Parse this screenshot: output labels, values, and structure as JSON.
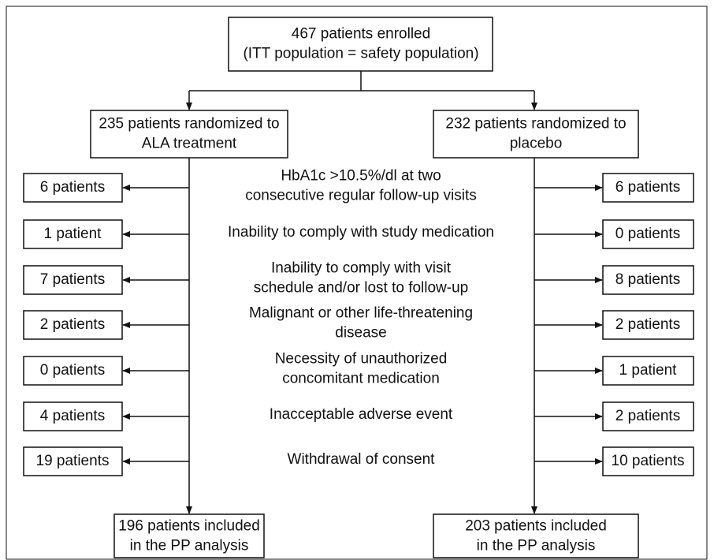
{
  "enrollment": {
    "lines": [
      "467 patients enrolled",
      "(ITT population = safety population)"
    ]
  },
  "arms": [
    {
      "label_lines": [
        "235 patients randomized to",
        "ALA treatment"
      ],
      "final_lines": [
        "196 patients included",
        "in the PP analysis"
      ]
    },
    {
      "label_lines": [
        "232 patients randomized to",
        "placebo"
      ],
      "final_lines": [
        "203 patients included",
        "in the PP analysis"
      ]
    }
  ],
  "reasons": [
    {
      "lines": [
        "HbA1c >10.5%/dl at two",
        "consecutive regular follow-up visits"
      ],
      "left": "6 patients",
      "right": "6 patients"
    },
    {
      "lines": [
        "Inability to comply with study medication"
      ],
      "left": "1 patient",
      "right": "0 patients"
    },
    {
      "lines": [
        "Inability to comply with visit",
        "schedule and/or lost to follow-up"
      ],
      "left": "7 patients",
      "right": "8 patients"
    },
    {
      "lines": [
        "Malignant or other life-threatening",
        "disease"
      ],
      "left": "2 patients",
      "right": "2 patients"
    },
    {
      "lines": [
        "Necessity of unauthorized",
        "concomitant medication"
      ],
      "left": "0 patients",
      "right": "1 patient"
    },
    {
      "lines": [
        "Inacceptable adverse event"
      ],
      "left": "4 patients",
      "right": "2 patients"
    },
    {
      "lines": [
        "Withdrawal of consent"
      ],
      "left": "19 patients",
      "right": "10 patients"
    }
  ]
}
